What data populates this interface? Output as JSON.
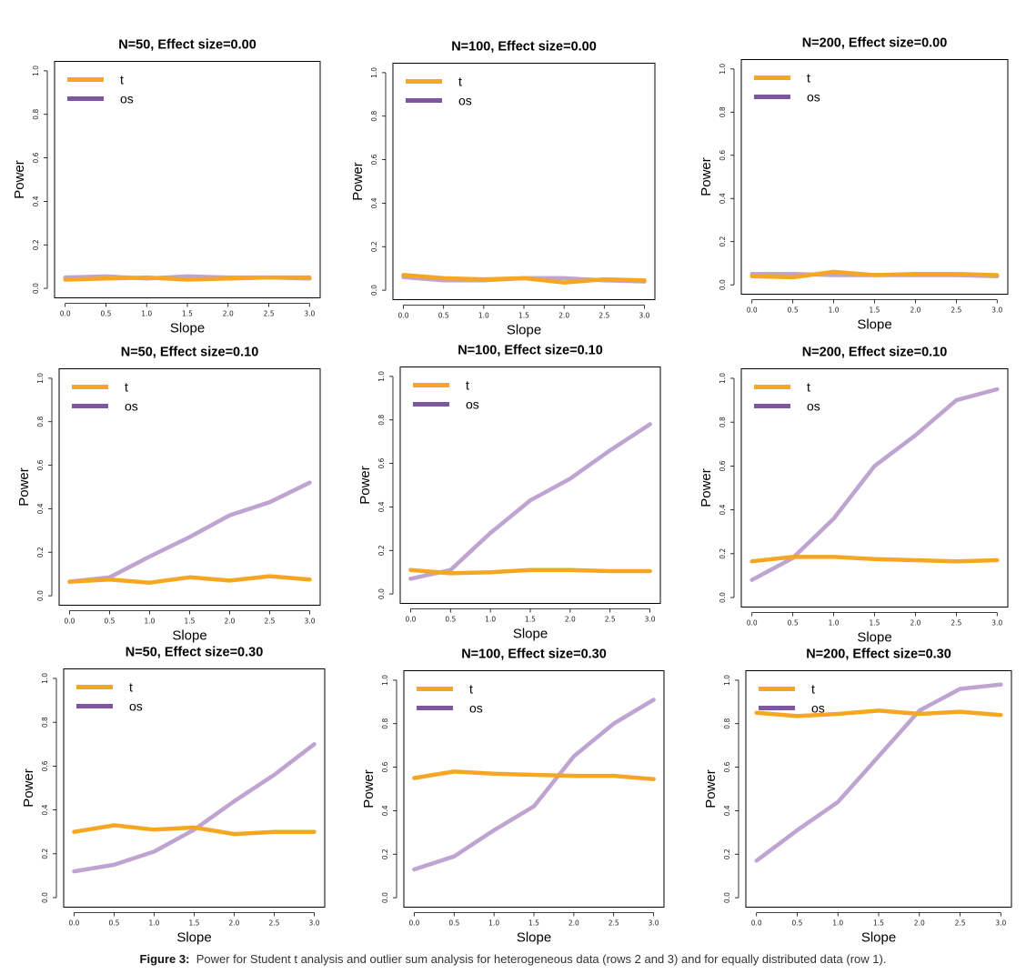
{
  "colors": {
    "t": "#F5A623",
    "os": "#BFA3D0",
    "os_legend": "#7E57A0"
  },
  "caption": {
    "label": "Figure 3:",
    "text": "Power for Student t analysis and outlier sum analysis for heterogeneous data (rows 2 and 3) and for equally distributed data (row 1)."
  },
  "chart_data": [
    {
      "type": "line",
      "title": "N=50, Effect size=0.00",
      "xlabel": "Slope",
      "ylabel": "Power",
      "x": [
        0,
        0.5,
        1,
        1.5,
        2,
        2.5,
        3
      ],
      "xlim": [
        0,
        3
      ],
      "ylim": [
        0,
        1
      ],
      "legend": "top-left",
      "xticks": [
        "0.0",
        "0.5",
        "1.0",
        "1.5",
        "2.0",
        "2.5",
        "3.0"
      ],
      "yticks": [
        "0.0",
        "0.2",
        "0.4",
        "0.6",
        "0.8",
        "1.0"
      ],
      "series": [
        {
          "name": "t",
          "values": [
            0.04,
            0.045,
            0.05,
            0.04,
            0.045,
            0.05,
            0.05
          ]
        },
        {
          "name": "os",
          "values": [
            0.05,
            0.055,
            0.045,
            0.055,
            0.05,
            0.05,
            0.045
          ]
        }
      ]
    },
    {
      "type": "line",
      "title": "N=100, Effect size=0.00",
      "xlabel": "Slope",
      "ylabel": "Power",
      "x": [
        0,
        0.5,
        1,
        1.5,
        2,
        2.5,
        3
      ],
      "xlim": [
        0,
        3
      ],
      "ylim": [
        0,
        1
      ],
      "legend": "top-left",
      "xticks": [
        "0.0",
        "0.5",
        "1.0",
        "1.5",
        "2.0",
        "2.5",
        "3.0"
      ],
      "yticks": [
        "0.0",
        "0.2",
        "0.4",
        "0.6",
        "0.8",
        "1.0"
      ],
      "series": [
        {
          "name": "t",
          "values": [
            0.07,
            0.055,
            0.05,
            0.055,
            0.035,
            0.05,
            0.045
          ]
        },
        {
          "name": "os",
          "values": [
            0.06,
            0.045,
            0.045,
            0.055,
            0.055,
            0.045,
            0.04
          ]
        }
      ]
    },
    {
      "type": "line",
      "title": "N=200, Effect size=0.00",
      "xlabel": "Slope",
      "ylabel": "Power",
      "x": [
        0,
        0.5,
        1,
        1.5,
        2,
        2.5,
        3
      ],
      "xlim": [
        0,
        3
      ],
      "ylim": [
        0,
        1
      ],
      "legend": "top-left",
      "xticks": [
        "0.0",
        "0.5",
        "1.0",
        "1.5",
        "2.0",
        "2.5",
        "3.0"
      ],
      "yticks": [
        "0.0",
        "0.2",
        "0.4",
        "0.6",
        "0.8",
        "1.0"
      ],
      "series": [
        {
          "name": "t",
          "values": [
            0.04,
            0.035,
            0.06,
            0.045,
            0.05,
            0.05,
            0.045
          ]
        },
        {
          "name": "os",
          "values": [
            0.05,
            0.05,
            0.045,
            0.045,
            0.045,
            0.045,
            0.04
          ]
        }
      ]
    },
    {
      "type": "line",
      "title": "N=50, Effect size=0.10",
      "xlabel": "Slope",
      "ylabel": "Power",
      "x": [
        0,
        0.5,
        1,
        1.5,
        2,
        2.5,
        3
      ],
      "xlim": [
        0,
        3
      ],
      "ylim": [
        0,
        1
      ],
      "legend": "top-left",
      "xticks": [
        "0.0",
        "0.5",
        "1.0",
        "1.5",
        "2.0",
        "2.5",
        "3.0"
      ],
      "yticks": [
        "0.0",
        "0.2",
        "0.4",
        "0.6",
        "0.8",
        "1.0"
      ],
      "series": [
        {
          "name": "t",
          "values": [
            0.065,
            0.075,
            0.06,
            0.085,
            0.07,
            0.09,
            0.075
          ]
        },
        {
          "name": "os",
          "values": [
            0.065,
            0.085,
            0.18,
            0.27,
            0.37,
            0.43,
            0.52
          ]
        }
      ]
    },
    {
      "type": "line",
      "title": "N=100, Effect size=0.10",
      "xlabel": "Slope",
      "ylabel": "Power",
      "x": [
        0,
        0.5,
        1,
        1.5,
        2,
        2.5,
        3
      ],
      "xlim": [
        0,
        3
      ],
      "ylim": [
        0,
        1
      ],
      "legend": "top-left",
      "xticks": [
        "0.0",
        "0.5",
        "1.0",
        "1.5",
        "2.0",
        "2.5",
        "3.0"
      ],
      "yticks": [
        "0.0",
        "0.2",
        "0.4",
        "0.6",
        "0.8",
        "1.0"
      ],
      "series": [
        {
          "name": "t",
          "values": [
            0.11,
            0.095,
            0.1,
            0.11,
            0.11,
            0.105,
            0.105
          ]
        },
        {
          "name": "os",
          "values": [
            0.07,
            0.11,
            0.28,
            0.43,
            0.53,
            0.66,
            0.78
          ]
        }
      ]
    },
    {
      "type": "line",
      "title": "N=200, Effect size=0.10",
      "xlabel": "Slope",
      "ylabel": "Power",
      "x": [
        0,
        0.5,
        1,
        1.5,
        2,
        2.5,
        3
      ],
      "xlim": [
        0,
        3
      ],
      "ylim": [
        0,
        1
      ],
      "legend": "top-left",
      "xticks": [
        "0.0",
        "0.5",
        "1.0",
        "1.5",
        "2.0",
        "2.5",
        "3.0"
      ],
      "yticks": [
        "0.0",
        "0.2",
        "0.4",
        "0.6",
        "0.8",
        "1.0"
      ],
      "series": [
        {
          "name": "t",
          "values": [
            0.165,
            0.185,
            0.185,
            0.175,
            0.17,
            0.165,
            0.17
          ]
        },
        {
          "name": "os",
          "values": [
            0.08,
            0.18,
            0.36,
            0.6,
            0.74,
            0.9,
            0.95
          ]
        }
      ]
    },
    {
      "type": "line",
      "title": "N=50, Effect size=0.30",
      "xlabel": "Slope",
      "ylabel": "Power",
      "x": [
        0,
        0.5,
        1,
        1.5,
        2,
        2.5,
        3
      ],
      "xlim": [
        0,
        3
      ],
      "ylim": [
        0,
        1
      ],
      "legend": "top-left",
      "xticks": [
        "0.0",
        "0.5",
        "1.0",
        "1.5",
        "2.0",
        "2.5",
        "3.0"
      ],
      "yticks": [
        "0.0",
        "0.2",
        "0.4",
        "0.6",
        "0.8",
        "1.0"
      ],
      "series": [
        {
          "name": "t",
          "values": [
            0.3,
            0.33,
            0.31,
            0.32,
            0.29,
            0.3,
            0.3
          ]
        },
        {
          "name": "os",
          "values": [
            0.12,
            0.15,
            0.21,
            0.31,
            0.44,
            0.56,
            0.7
          ]
        }
      ]
    },
    {
      "type": "line",
      "title": "N=100, Effect size=0.30",
      "xlabel": "Slope",
      "ylabel": "Power",
      "x": [
        0,
        0.5,
        1,
        1.5,
        2,
        2.5,
        3
      ],
      "xlim": [
        0,
        3
      ],
      "ylim": [
        0,
        1
      ],
      "legend": "top-left",
      "xticks": [
        "0.0",
        "0.5",
        "1.0",
        "1.5",
        "2.0",
        "2.5",
        "3.0"
      ],
      "yticks": [
        "0.0",
        "0.2",
        "0.4",
        "0.6",
        "0.8",
        "1.0"
      ],
      "series": [
        {
          "name": "t",
          "values": [
            0.55,
            0.58,
            0.57,
            0.565,
            0.56,
            0.56,
            0.545
          ]
        },
        {
          "name": "os",
          "values": [
            0.13,
            0.19,
            0.31,
            0.42,
            0.65,
            0.8,
            0.91
          ]
        }
      ]
    },
    {
      "type": "line",
      "title": "N=200, Effect size=0.30",
      "xlabel": "Slope",
      "ylabel": "Power",
      "x": [
        0,
        0.5,
        1,
        1.5,
        2,
        2.5,
        3
      ],
      "xlim": [
        0,
        3
      ],
      "ylim": [
        0,
        1
      ],
      "legend": "top-left",
      "xticks": [
        "0.0",
        "0.5",
        "1.0",
        "1.5",
        "2.0",
        "2.5",
        "3.0"
      ],
      "yticks": [
        "0.0",
        "0.2",
        "0.4",
        "0.6",
        "0.8",
        "1.0"
      ],
      "series": [
        {
          "name": "t",
          "values": [
            0.85,
            0.835,
            0.845,
            0.86,
            0.845,
            0.855,
            0.84
          ]
        },
        {
          "name": "os",
          "values": [
            0.17,
            0.31,
            0.44,
            0.65,
            0.86,
            0.96,
            0.98
          ]
        }
      ]
    }
  ]
}
